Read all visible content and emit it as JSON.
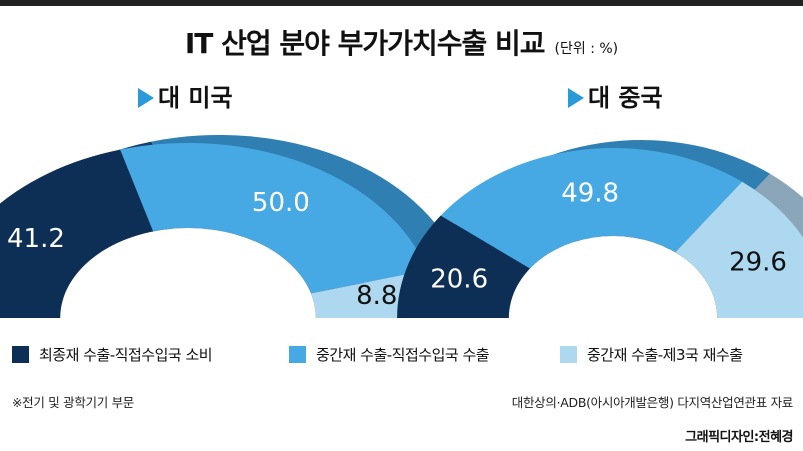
{
  "title": "IT 산업 분야 부가가치수출 비교",
  "unit": "(단위 : %)",
  "colors": {
    "top_bar": "#222222",
    "series": [
      "#0d2f55",
      "#47a9e4",
      "#aed8f0"
    ],
    "series_side": [
      "#16406b",
      "#2f7fb3",
      "#8aa6b8"
    ],
    "triangle": "#2a9ad9",
    "hole_shadow": "#0f1e2e"
  },
  "legend": [
    {
      "label": "최종재 수출-직접수입국 소비"
    },
    {
      "label": "중간재 수출-직접수입국 수출"
    },
    {
      "label": "중간재 수출-제3국 재수출"
    }
  ],
  "footer": {
    "note": "※전기 및 광학기기 부문",
    "source": "대한상의·ADB(아시아개발은행) 다지역산업연관표 자료",
    "credit": "그래픽디자인:전혜경"
  },
  "chart_data": [
    {
      "type": "pie",
      "title": "대 미국",
      "labels": [
        "최종재 수출-직접수입국 소비",
        "중간재 수출-직접수입국 수출",
        "중간재 수출-제3국 재수출"
      ],
      "values": [
        41.2,
        50.0,
        8.8
      ],
      "value_labels": [
        "41.2",
        "50.0",
        "8.8"
      ]
    },
    {
      "type": "pie",
      "title": "대 중국",
      "labels": [
        "최종재 수출-직접수입국 소비",
        "중간재 수출-직접수입국 수출",
        "중간재 수출-제3국 재수출"
      ],
      "values": [
        20.6,
        49.8,
        29.6
      ],
      "value_labels": [
        "20.6",
        "49.8",
        "29.6"
      ]
    }
  ]
}
